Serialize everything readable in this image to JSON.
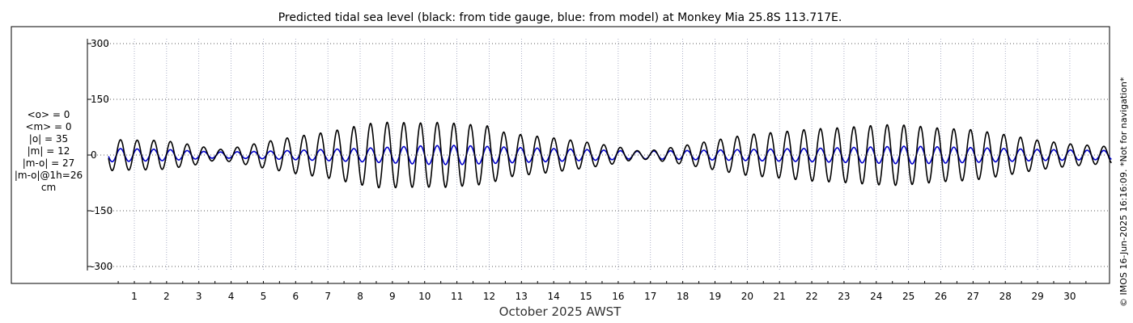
{
  "chart_data": {
    "type": "line",
    "title": "Predicted tidal sea level (black: from tide gauge, blue: from model) at Monkey Mia 25.8S 113.717E.",
    "xlabel": "October 2025 AWST",
    "ylabel": "",
    "ylim": [
      -320,
      320
    ],
    "yticks": [
      300,
      150,
      0,
      -150,
      -300
    ],
    "xlim": [
      0.2,
      31.3
    ],
    "xticks": [
      "1",
      "2",
      "3",
      "4",
      "5",
      "6",
      "7",
      "8",
      "9",
      "10",
      "11",
      "12",
      "13",
      "14",
      "15",
      "16",
      "17",
      "18",
      "19",
      "20",
      "21",
      "22",
      "23",
      "24",
      "25",
      "26",
      "27",
      "28",
      "29",
      "30"
    ],
    "grid": true,
    "stats": [
      "<o> = 0",
      "<m> = 0",
      "|o| = 35",
      "|m| = 12",
      "|m-o| = 27",
      "|m-o|@1h=26",
      "cm"
    ],
    "credit": "© IMOS 16-Jun-2025 16:16:09. *Not for navigation*",
    "series": [
      {
        "name": "from tide gauge",
        "color": "#000000",
        "envelope_days": [
          0.2,
          1,
          1.5,
          2,
          3,
          3.5,
          4,
          5,
          6,
          7,
          8,
          8.5,
          9,
          10,
          10.5,
          11,
          12,
          12.5,
          13,
          14,
          15,
          16,
          16.5,
          17,
          18,
          19,
          20,
          21,
          22,
          23,
          24,
          24.5,
          25,
          26,
          27,
          28,
          29,
          30,
          31.3
        ],
        "envelope_amplitude_cm": [
          42,
          40,
          40,
          38,
          25,
          14,
          18,
          35,
          50,
          62,
          80,
          88,
          88,
          86,
          88,
          85,
          78,
          60,
          55,
          46,
          35,
          22,
          12,
          12,
          25,
          40,
          55,
          62,
          70,
          74,
          80,
          82,
          80,
          72,
          68,
          55,
          40,
          30,
          22
        ],
        "period_hours": 12.4
      },
      {
        "name": "from model",
        "color": "#0000cc",
        "envelope_days": [
          0.2,
          2,
          3.5,
          5,
          8,
          10,
          11,
          13,
          16,
          16.5,
          18,
          20,
          22,
          24,
          25,
          27,
          29,
          31.3
        ],
        "envelope_amplitude_cm": [
          18,
          15,
          8,
          10,
          18,
          25,
          26,
          20,
          12,
          10,
          12,
          15,
          18,
          22,
          24,
          20,
          15,
          12
        ],
        "period_hours": 12.4
      }
    ]
  }
}
